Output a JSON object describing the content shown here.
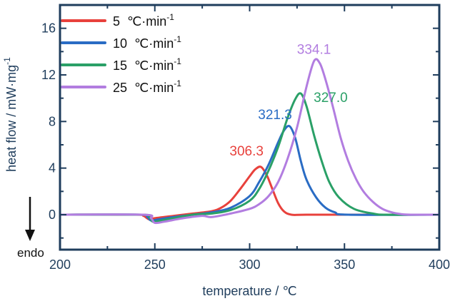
{
  "chart_data": {
    "type": "line",
    "title": "",
    "xlabel": "temperature / ℃",
    "ylabel": "heat flow / mW·mg",
    "ylabel_sup": "-1",
    "xlim": [
      200,
      400
    ],
    "ylim": [
      -3,
      18
    ],
    "x_ticks": [
      200,
      250,
      300,
      350,
      400
    ],
    "y_ticks": [
      0,
      4,
      8,
      12,
      16
    ],
    "grid": false,
    "legend_position": "top-left",
    "endo_label": "endo",
    "legend_unit_text": "℃·min",
    "legend_unit_sup": "-1",
    "series": [
      {
        "name": "5",
        "color": "#e8413c",
        "peak_label": "306.3",
        "points": [
          [
            200,
            0
          ],
          [
            240,
            0
          ],
          [
            244,
            -0.1
          ],
          [
            247,
            -0.4
          ],
          [
            250,
            -0.3
          ],
          [
            260,
            -0.1
          ],
          [
            270,
            0.1
          ],
          [
            280,
            0.3
          ],
          [
            285,
            0.6
          ],
          [
            290,
            1.2
          ],
          [
            295,
            2.2
          ],
          [
            300,
            3.3
          ],
          [
            303,
            3.9
          ],
          [
            306,
            4.1
          ],
          [
            309,
            3.4
          ],
          [
            312,
            2.2
          ],
          [
            315,
            1.0
          ],
          [
            318,
            0.3
          ],
          [
            322,
            0
          ],
          [
            330,
            0
          ],
          [
            360,
            0
          ],
          [
            400,
            0
          ]
        ]
      },
      {
        "name": "10",
        "color": "#2a6cc4",
        "peak_label": "321.3",
        "points": [
          [
            200,
            0
          ],
          [
            242,
            0
          ],
          [
            246,
            -0.2
          ],
          [
            248,
            -0.5
          ],
          [
            252,
            -0.4
          ],
          [
            260,
            -0.2
          ],
          [
            270,
            0
          ],
          [
            280,
            0.2
          ],
          [
            290,
            0.6
          ],
          [
            300,
            1.6
          ],
          [
            305,
            2.8
          ],
          [
            310,
            4.3
          ],
          [
            315,
            6.2
          ],
          [
            318,
            7.2
          ],
          [
            321,
            7.6
          ],
          [
            324,
            6.6
          ],
          [
            327,
            4.6
          ],
          [
            330,
            3.0
          ],
          [
            335,
            1.5
          ],
          [
            340,
            0.6
          ],
          [
            345,
            0.2
          ],
          [
            352,
            0
          ],
          [
            400,
            0
          ]
        ]
      },
      {
        "name": "15",
        "color": "#2aa067",
        "peak_label": "327.0",
        "points": [
          [
            200,
            0
          ],
          [
            243,
            0
          ],
          [
            247,
            -0.2
          ],
          [
            249,
            -0.6
          ],
          [
            253,
            -0.5
          ],
          [
            260,
            -0.3
          ],
          [
            270,
            0
          ],
          [
            280,
            0.1
          ],
          [
            290,
            0.4
          ],
          [
            300,
            1.2
          ],
          [
            305,
            2.2
          ],
          [
            310,
            3.8
          ],
          [
            315,
            5.8
          ],
          [
            320,
            8.3
          ],
          [
            324,
            9.9
          ],
          [
            327,
            10.4
          ],
          [
            330,
            9.3
          ],
          [
            334,
            6.8
          ],
          [
            338,
            4.6
          ],
          [
            342,
            2.8
          ],
          [
            347,
            1.5
          ],
          [
            355,
            0.5
          ],
          [
            365,
            0.1
          ],
          [
            372,
            0
          ],
          [
            400,
            0
          ]
        ]
      },
      {
        "name": "25",
        "color": "#b27de0",
        "peak_label": "334.1",
        "points": [
          [
            200,
            0
          ],
          [
            244,
            0
          ],
          [
            248,
            -0.3
          ],
          [
            250,
            -0.7
          ],
          [
            255,
            -0.6
          ],
          [
            265,
            -0.3
          ],
          [
            275,
            -0.1
          ],
          [
            280,
            -0.2
          ],
          [
            290,
            0.1
          ],
          [
            300,
            0.5
          ],
          [
            305,
            0.9
          ],
          [
            310,
            1.6
          ],
          [
            315,
            2.8
          ],
          [
            320,
            4.8
          ],
          [
            325,
            7.5
          ],
          [
            330,
            11.0
          ],
          [
            334,
            13.2
          ],
          [
            337,
            13.0
          ],
          [
            340,
            11.6
          ],
          [
            344,
            9.2
          ],
          [
            348,
            6.6
          ],
          [
            352,
            4.6
          ],
          [
            356,
            3.1
          ],
          [
            360,
            2.0
          ],
          [
            365,
            1.1
          ],
          [
            370,
            0.5
          ],
          [
            375,
            0.2
          ],
          [
            380,
            0.05
          ],
          [
            385,
            0
          ],
          [
            400,
            0
          ]
        ]
      }
    ]
  }
}
